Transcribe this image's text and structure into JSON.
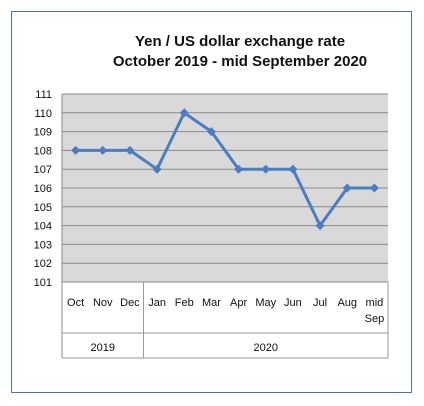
{
  "chart_data": {
    "type": "line",
    "title": "Yen / US dollar exchange rate",
    "subtitle": "October 2019  - mid September 2020",
    "categories": [
      [
        "Oct"
      ],
      [
        "Nov"
      ],
      [
        "Dec"
      ],
      [
        "Jan"
      ],
      [
        "Feb"
      ],
      [
        "Mar"
      ],
      [
        "Apr"
      ],
      [
        "May"
      ],
      [
        "Jun"
      ],
      [
        "Jul"
      ],
      [
        "Aug"
      ],
      [
        "mid",
        "Sep"
      ]
    ],
    "groups": [
      {
        "label": "2019",
        "count": 3
      },
      {
        "label": "2020",
        "count": 9
      }
    ],
    "values": [
      108,
      108,
      108,
      107,
      110,
      109,
      107,
      107,
      107,
      104,
      106,
      106
    ],
    "ylim": [
      101,
      111
    ],
    "yticks": [
      101,
      102,
      103,
      104,
      105,
      106,
      107,
      108,
      109,
      110,
      111
    ],
    "grid": true,
    "colors": {
      "series": "#4a7ec0",
      "plot_bg": "#d9d9d9",
      "grid": "#8a8a8a",
      "frame": "#4a73b6"
    }
  }
}
